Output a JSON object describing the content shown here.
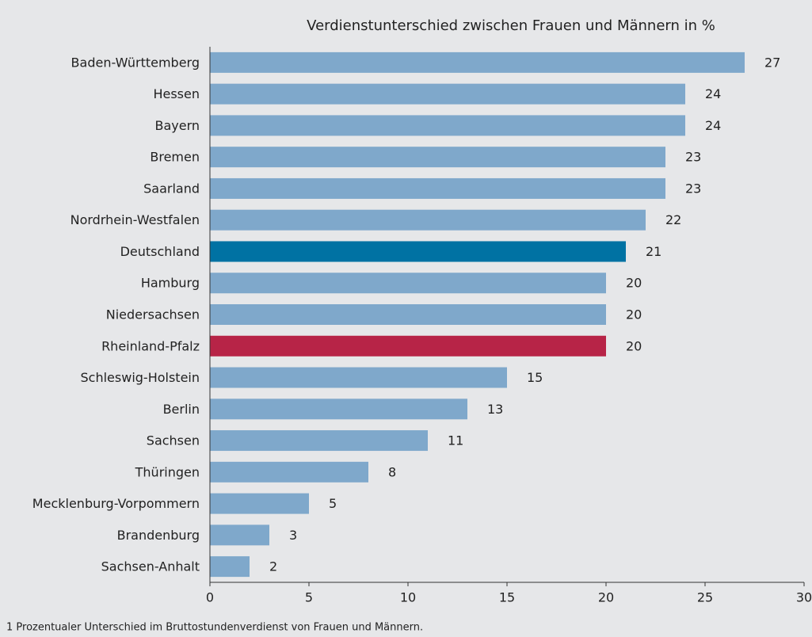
{
  "chart_data": {
    "type": "barh",
    "title": "Verdienstunterschied zwischen Frauen und Männern in %",
    "footnote": "1 Prozentualer Unterschied im Bruttostundenverdienst von Frauen und Männern.",
    "categories": [
      "Baden-Württemberg",
      "Hessen",
      "Bayern",
      "Bremen",
      "Saarland",
      "Nordrhein-Westfalen",
      "Deutschland",
      "Hamburg",
      "Niedersachsen",
      "Rheinland-Pfalz",
      "Schleswig-Holstein",
      "Berlin",
      "Sachsen",
      "Thüringen",
      "Mecklenburg-Vorpommern",
      "Brandenburg",
      "Sachsen-Anhalt"
    ],
    "values": [
      27,
      24,
      24,
      23,
      23,
      22,
      21,
      20,
      20,
      20,
      15,
      13,
      11,
      8,
      5,
      3,
      2
    ],
    "colors": [
      "#7fa8cb",
      "#7fa8cb",
      "#7fa8cb",
      "#7fa8cb",
      "#7fa8cb",
      "#7fa8cb",
      "#0072a3",
      "#7fa8cb",
      "#7fa8cb",
      "#b72447",
      "#7fa8cb",
      "#7fa8cb",
      "#7fa8cb",
      "#7fa8cb",
      "#7fa8cb",
      "#7fa8cb",
      "#7fa8cb"
    ],
    "xlim": [
      0,
      30
    ],
    "xticks": [
      0,
      5,
      10,
      15,
      20,
      25,
      30
    ]
  }
}
